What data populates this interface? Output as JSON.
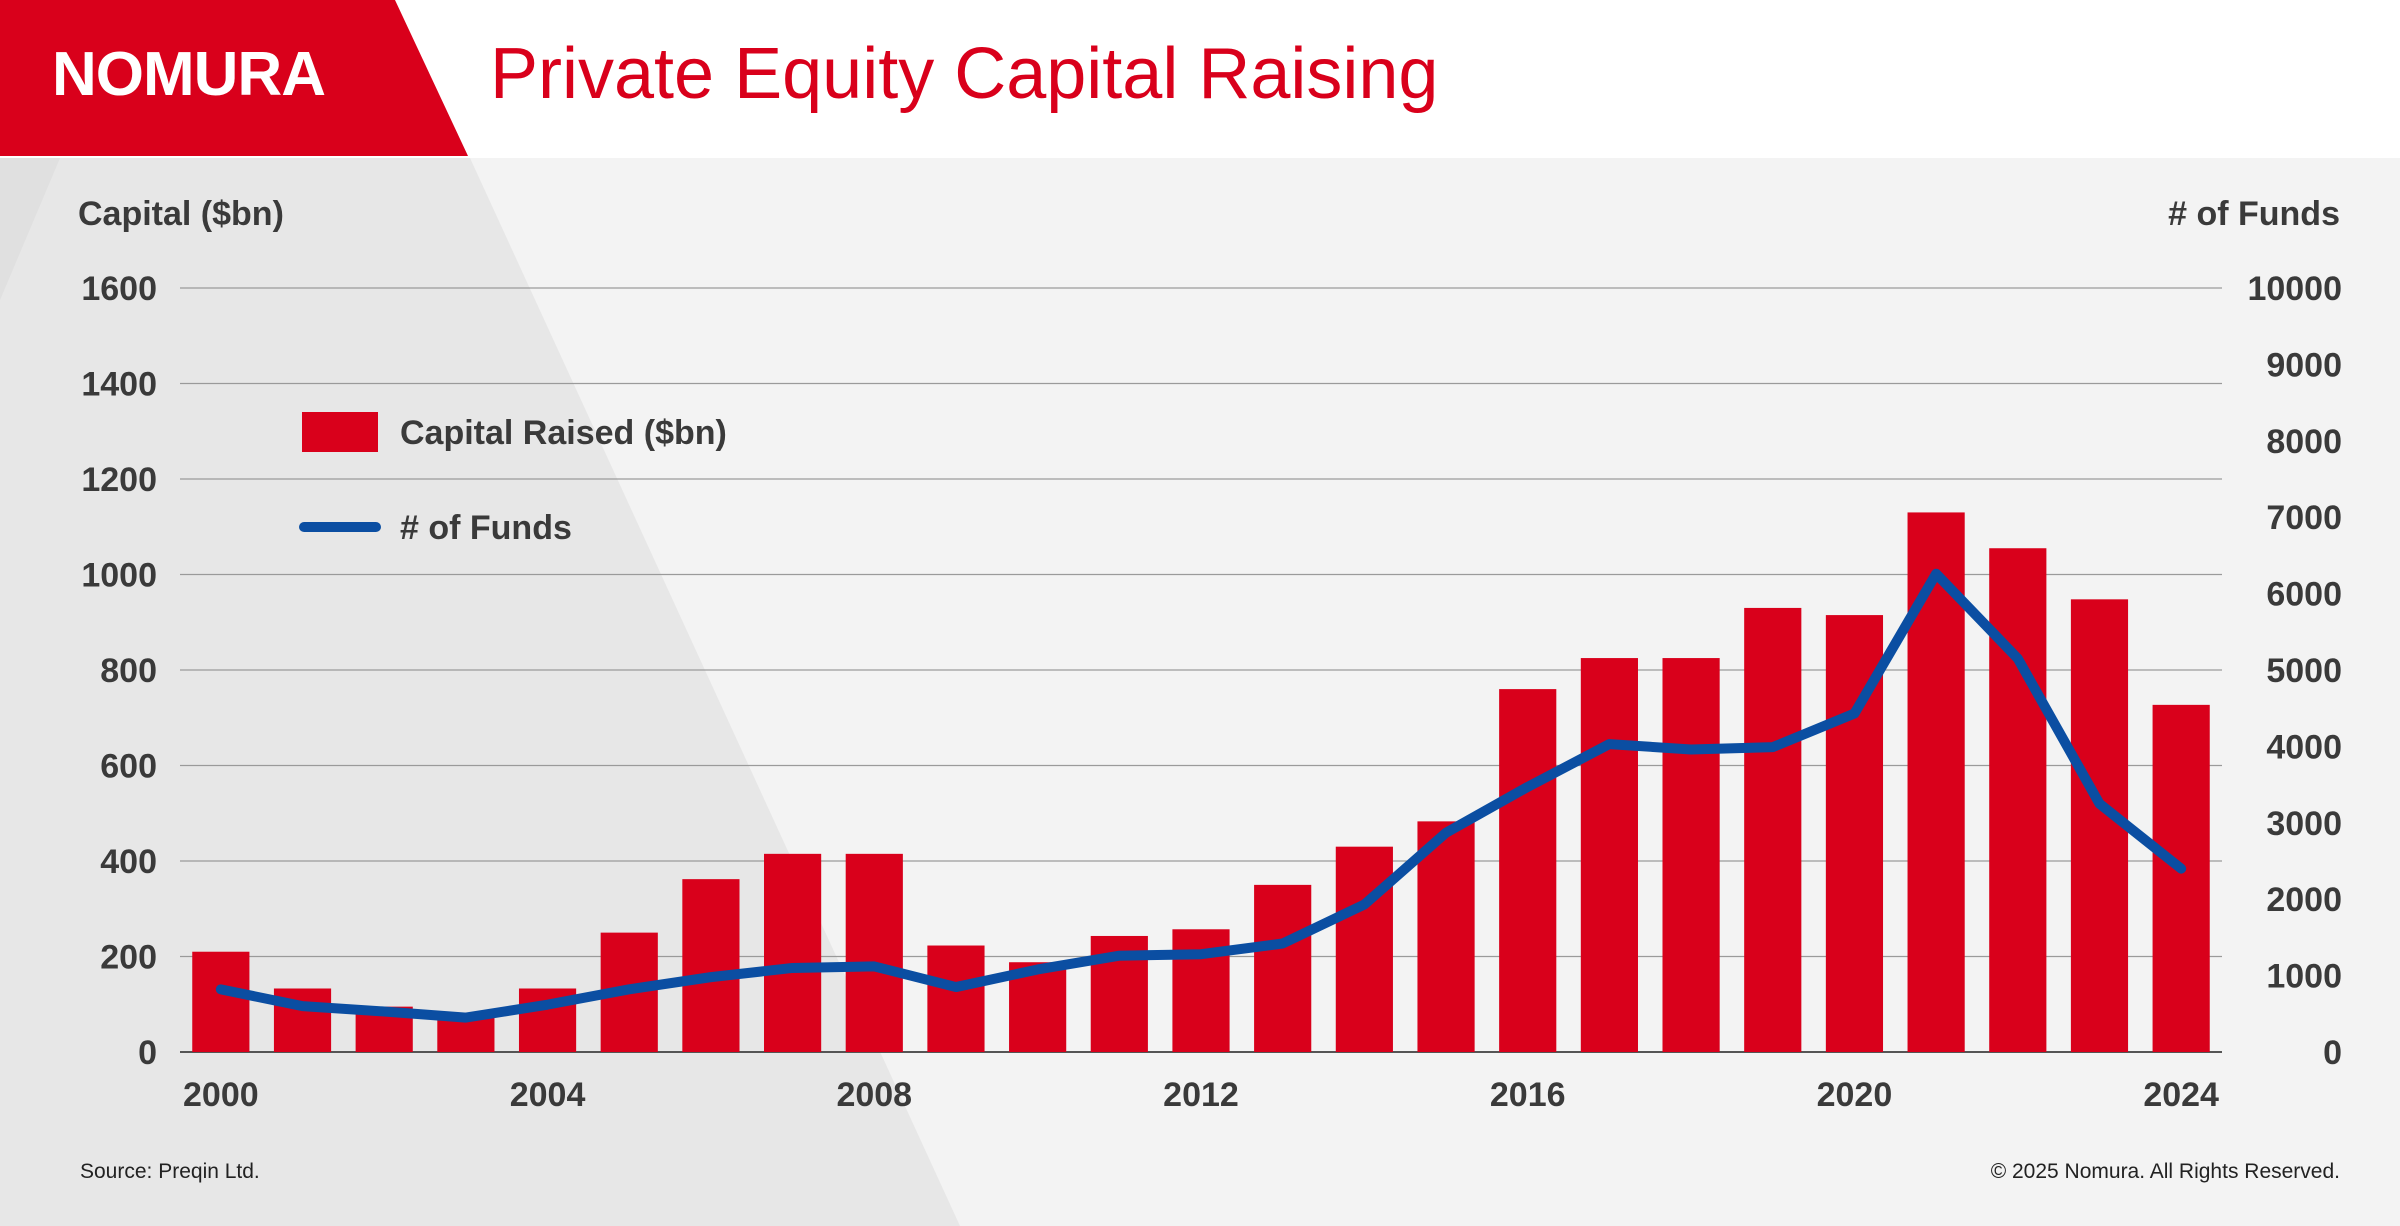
{
  "brand": {
    "logo": "NOMURA",
    "color": "#d9001b"
  },
  "header": {
    "title": "Private Equity Capital Raising"
  },
  "footer": {
    "source": "Source: Preqin Ltd.",
    "copyright": "© 2025 Nomura. All Rights Reserved."
  },
  "chart_data": {
    "type": "bar",
    "x": [
      2000,
      2001,
      2002,
      2003,
      2004,
      2005,
      2006,
      2007,
      2008,
      2009,
      2010,
      2011,
      2012,
      2013,
      2014,
      2015,
      2016,
      2017,
      2018,
      2019,
      2020,
      2021,
      2022,
      2023,
      2024
    ],
    "x_tick_labels": [
      "2000",
      "2004",
      "2008",
      "2012",
      "2016",
      "2020",
      "2024"
    ],
    "ylabel_left": "Capital ($bn)",
    "ylabel_right": "# of Funds",
    "ylim_left": [
      0,
      1600
    ],
    "ylim_right": [
      0,
      10000
    ],
    "yticks_left": [
      0,
      200,
      400,
      600,
      800,
      1000,
      1200,
      1400,
      1600
    ],
    "yticks_right": [
      0,
      1000,
      2000,
      3000,
      4000,
      5000,
      6000,
      7000,
      8000,
      9000,
      10000
    ],
    "grid": true,
    "legend_position": "top-left",
    "series": [
      {
        "name": "Capital Raised ($bn)",
        "type": "bar",
        "axis": "left",
        "color": "#d9001b",
        "values": [
          210,
          133,
          95,
          75,
          133,
          250,
          362,
          415,
          415,
          223,
          188,
          243,
          257,
          350,
          430,
          483,
          760,
          825,
          825,
          930,
          915,
          1130,
          1055,
          948,
          727
        ]
      },
      {
        "name": "# of Funds",
        "type": "line",
        "axis": "right",
        "color": "#0b4ea2",
        "values": [
          820,
          600,
          530,
          450,
          620,
          820,
          980,
          1100,
          1120,
          850,
          1080,
          1260,
          1280,
          1420,
          1930,
          2870,
          3470,
          4030,
          3960,
          3990,
          4430,
          6260,
          5150,
          3250,
          2400
        ]
      }
    ]
  }
}
